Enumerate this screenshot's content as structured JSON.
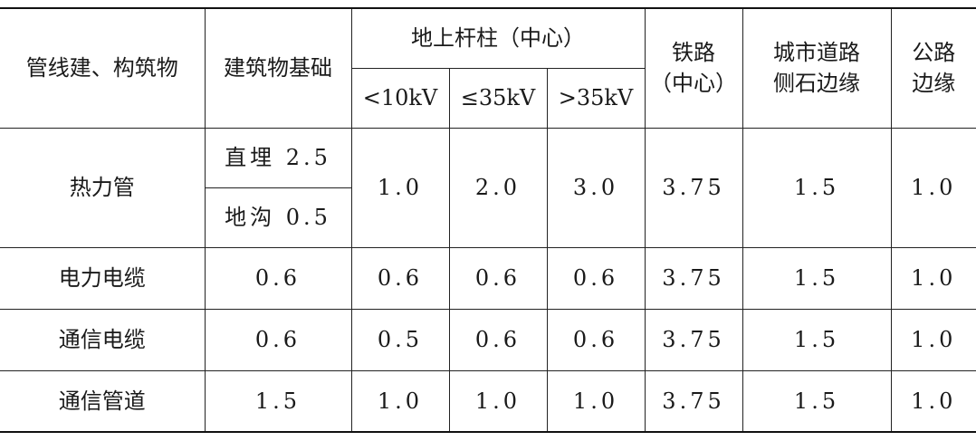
{
  "header": {
    "col_structure": "管线建、构筑物",
    "col_foundation": "建筑物基础",
    "col_pole_group": "地上杆柱（中心）",
    "col_pole_lt10": "<10kV",
    "col_pole_le35": "≤35kV",
    "col_pole_gt35": ">35kV",
    "col_rail_line1": "铁路",
    "col_rail_line2": "（中心）",
    "col_road_line1": "城市道路",
    "col_road_line2": "侧石边缘",
    "col_highway_line1": "公路",
    "col_highway_line2": "边缘"
  },
  "rows": [
    {
      "name": "热力管",
      "foundation_a": "直埋 2.5",
      "foundation_b": "地沟 0.5",
      "pole_lt10": "1.0",
      "pole_le35": "2.0",
      "pole_gt35": "3.0",
      "rail": "3.75",
      "road": "1.5",
      "highway": "1.0"
    },
    {
      "name": "电力电缆",
      "foundation": "0.6",
      "pole_lt10": "0.6",
      "pole_le35": "0.6",
      "pole_gt35": "0.6",
      "rail": "3.75",
      "road": "1.5",
      "highway": "1.0"
    },
    {
      "name": "通信电缆",
      "foundation": "0.6",
      "pole_lt10": "0.5",
      "pole_le35": "0.6",
      "pole_gt35": "0.6",
      "rail": "3.75",
      "road": "1.5",
      "highway": "1.0"
    },
    {
      "name": "通信管道",
      "foundation": "1.5",
      "pole_lt10": "1.0",
      "pole_le35": "1.0",
      "pole_gt35": "1.0",
      "rail": "3.75",
      "road": "1.5",
      "highway": "1.0"
    }
  ]
}
